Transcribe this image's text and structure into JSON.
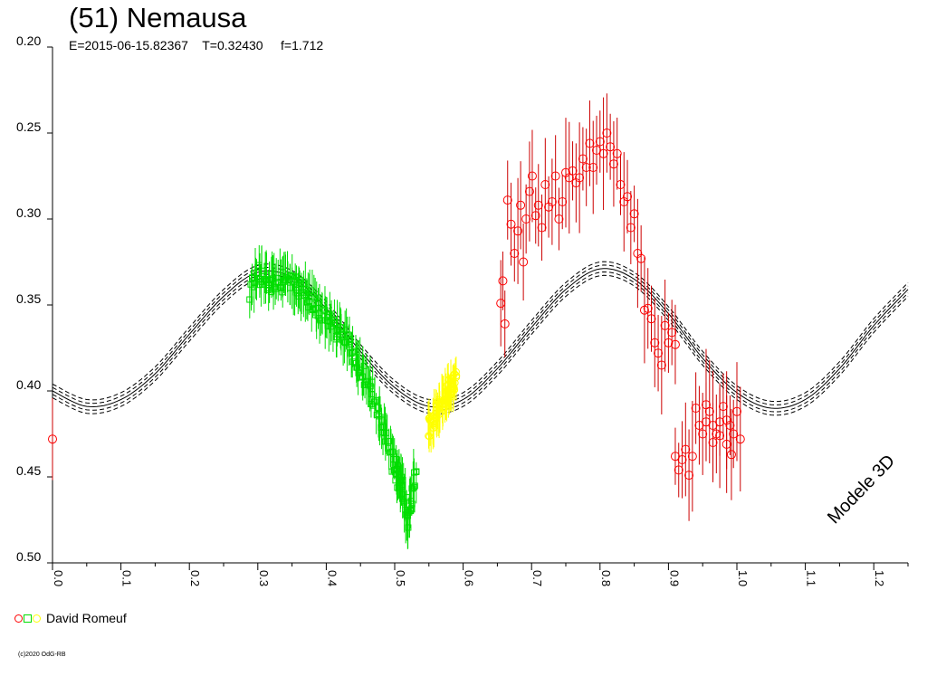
{
  "header": {
    "title": "(51) Nemausa",
    "subtitle": "E=2015-06-15.82367    T=0.32430     f=1.712"
  },
  "legend": {
    "label": "David Romeuf",
    "markers": [
      {
        "shape": "circle",
        "color": "#ff0000"
      },
      {
        "shape": "square",
        "color": "#00dd00"
      },
      {
        "shape": "circle",
        "color": "#ffff00"
      }
    ]
  },
  "model_label": "Modele 3D",
  "copyright": "(c)2020 OdG-RB",
  "chart_data": {
    "type": "scatter",
    "title": "(51) Nemausa",
    "xlim": [
      0.0,
      1.25
    ],
    "ylim": [
      0.5,
      0.2
    ],
    "y_inverted": true,
    "grid": false,
    "x_ticks": [
      "0.0",
      "0.1",
      "0.2",
      "0.3",
      "0.4",
      "0.5",
      "0.6",
      "0.7",
      "0.8",
      "0.9",
      "1.0",
      "1.1",
      "1.2"
    ],
    "y_ticks": [
      "0.20",
      "0.25",
      "0.30",
      "0.35",
      "0.40",
      "0.45",
      "0.50"
    ],
    "model": {
      "name": "Modele 3D",
      "center_curve": [
        [
          0.0,
          0.4
        ],
        [
          0.05,
          0.409
        ],
        [
          0.1,
          0.405
        ],
        [
          0.15,
          0.39
        ],
        [
          0.2,
          0.367
        ],
        [
          0.25,
          0.345
        ],
        [
          0.3,
          0.331
        ],
        [
          0.35,
          0.334
        ],
        [
          0.4,
          0.352
        ],
        [
          0.45,
          0.377
        ],
        [
          0.5,
          0.398
        ],
        [
          0.55,
          0.409
        ],
        [
          0.6,
          0.405
        ],
        [
          0.65,
          0.387
        ],
        [
          0.7,
          0.363
        ],
        [
          0.75,
          0.341
        ],
        [
          0.8,
          0.329
        ],
        [
          0.85,
          0.335
        ],
        [
          0.9,
          0.355
        ],
        [
          0.95,
          0.381
        ],
        [
          1.0,
          0.401
        ],
        [
          1.05,
          0.41
        ],
        [
          1.1,
          0.405
        ],
        [
          1.15,
          0.387
        ],
        [
          1.2,
          0.362
        ],
        [
          1.25,
          0.341
        ]
      ],
      "offsets": [
        -0.004,
        -0.002,
        0.0,
        0.002,
        0.004
      ],
      "color": "#000000"
    },
    "series": [
      {
        "name": "David Romeuf",
        "marker": "circle",
        "color": "#ff0000",
        "points": [
          [
            0.0,
            0.428
          ],
          [
            0.655,
            0.349
          ],
          [
            0.658,
            0.336
          ],
          [
            0.661,
            0.361
          ],
          [
            0.665,
            0.289
          ],
          [
            0.67,
            0.303
          ],
          [
            0.675,
            0.32
          ],
          [
            0.68,
            0.307
          ],
          [
            0.684,
            0.292
          ],
          [
            0.688,
            0.325
          ],
          [
            0.692,
            0.3
          ],
          [
            0.697,
            0.284
          ],
          [
            0.701,
            0.275
          ],
          [
            0.706,
            0.298
          ],
          [
            0.71,
            0.292
          ],
          [
            0.715,
            0.305
          ],
          [
            0.72,
            0.28
          ],
          [
            0.725,
            0.293
          ],
          [
            0.73,
            0.29
          ],
          [
            0.735,
            0.275
          ],
          [
            0.74,
            0.3
          ],
          [
            0.745,
            0.29
          ],
          [
            0.75,
            0.273
          ],
          [
            0.755,
            0.276
          ],
          [
            0.76,
            0.272
          ],
          [
            0.765,
            0.279
          ],
          [
            0.77,
            0.276
          ],
          [
            0.775,
            0.265
          ],
          [
            0.78,
            0.27
          ],
          [
            0.785,
            0.256
          ],
          [
            0.79,
            0.27
          ],
          [
            0.795,
            0.26
          ],
          [
            0.8,
            0.255
          ],
          [
            0.805,
            0.262
          ],
          [
            0.81,
            0.25
          ],
          [
            0.815,
            0.258
          ],
          [
            0.82,
            0.268
          ],
          [
            0.825,
            0.262
          ],
          [
            0.83,
            0.28
          ],
          [
            0.835,
            0.29
          ],
          [
            0.84,
            0.287
          ],
          [
            0.845,
            0.305
          ],
          [
            0.85,
            0.297
          ],
          [
            0.855,
            0.32
          ],
          [
            0.86,
            0.323
          ],
          [
            0.865,
            0.353
          ],
          [
            0.87,
            0.352
          ],
          [
            0.875,
            0.358
          ],
          [
            0.88,
            0.372
          ],
          [
            0.885,
            0.378
          ],
          [
            0.89,
            0.385
          ],
          [
            0.895,
            0.362
          ],
          [
            0.9,
            0.372
          ],
          [
            0.905,
            0.366
          ],
          [
            0.91,
            0.373
          ],
          [
            0.91,
            0.438
          ],
          [
            0.915,
            0.446
          ],
          [
            0.92,
            0.44
          ],
          [
            0.925,
            0.434
          ],
          [
            0.93,
            0.449
          ],
          [
            0.935,
            0.438
          ],
          [
            0.94,
            0.41
          ],
          [
            0.945,
            0.42
          ],
          [
            0.95,
            0.425
          ],
          [
            0.955,
            0.418
          ],
          [
            0.96,
            0.412
          ],
          [
            0.965,
            0.43
          ],
          [
            0.97,
            0.425
          ],
          [
            0.975,
            0.418
          ],
          [
            0.98,
            0.409
          ],
          [
            0.985,
            0.431
          ],
          [
            0.99,
            0.42
          ],
          [
            0.995,
            0.425
          ],
          [
            1.0,
            0.412
          ],
          [
            1.005,
            0.428
          ],
          [
            0.955,
            0.408
          ],
          [
            0.965,
            0.42
          ],
          [
            0.975,
            0.426
          ],
          [
            0.985,
            0.417
          ],
          [
            0.992,
            0.437
          ]
        ]
      },
      {
        "name": "David Romeuf",
        "marker": "square",
        "color": "#00dd00",
        "segments": [
          [
            0.29,
            0.345
          ],
          [
            0.3,
            0.333
          ],
          [
            0.31,
            0.335
          ],
          [
            0.32,
            0.337
          ],
          [
            0.33,
            0.336
          ],
          [
            0.34,
            0.337
          ],
          [
            0.35,
            0.338
          ],
          [
            0.36,
            0.34
          ],
          [
            0.37,
            0.343
          ],
          [
            0.38,
            0.348
          ],
          [
            0.39,
            0.355
          ],
          [
            0.4,
            0.358
          ],
          [
            0.41,
            0.362
          ],
          [
            0.42,
            0.366
          ],
          [
            0.43,
            0.37
          ],
          [
            0.44,
            0.38
          ],
          [
            0.45,
            0.387
          ],
          [
            0.46,
            0.395
          ],
          [
            0.47,
            0.405
          ],
          [
            0.48,
            0.418
          ],
          [
            0.49,
            0.432
          ],
          [
            0.5,
            0.445
          ],
          [
            0.505,
            0.45
          ],
          [
            0.51,
            0.455
          ],
          [
            0.515,
            0.465
          ],
          [
            0.52,
            0.475
          ],
          [
            0.525,
            0.46
          ],
          [
            0.53,
            0.45
          ]
        ],
        "error": 0.012,
        "density": 7
      },
      {
        "name": "David Romeuf",
        "marker": "circle",
        "color": "#ffff00",
        "segments": [
          [
            0.55,
            0.422
          ],
          [
            0.555,
            0.418
          ],
          [
            0.56,
            0.414
          ],
          [
            0.565,
            0.41
          ],
          [
            0.57,
            0.406
          ],
          [
            0.575,
            0.402
          ],
          [
            0.58,
            0.398
          ],
          [
            0.585,
            0.396
          ],
          [
            0.59,
            0.394
          ]
        ],
        "error": 0.01,
        "density": 8
      }
    ]
  }
}
